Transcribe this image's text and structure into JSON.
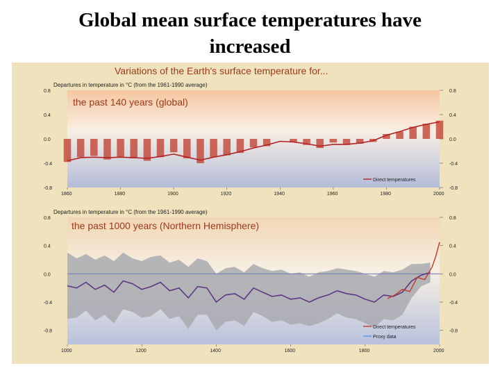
{
  "page": {
    "title": "Global mean surface temperatures have increased"
  },
  "figure": {
    "main_title": "Variations of the Earth's surface temperature for...",
    "background_color": "#f0e2bc",
    "title_color": "#9a3a1c"
  },
  "chart_data": [
    {
      "type": "bar",
      "subtitle": "Departures in temperature in °C (from the 1961-1990 average)",
      "panel_title": "the past 140 years (global)",
      "xlim": [
        1860,
        2000
      ],
      "ylim": [
        -0.8,
        0.8
      ],
      "x_ticks": [
        "1860",
        "1880",
        "1900",
        "1920",
        "1940",
        "1960",
        "1980",
        "2000"
      ],
      "y_ticks": [
        "0.8",
        "0.4",
        "0.0",
        "-0.4",
        "-0.8"
      ],
      "legend": [
        "Direct temperatures"
      ],
      "legend_placement": "bottom-right",
      "colors": {
        "bars": "#c0392b",
        "smooth": "#b22222",
        "warm": "#f6c7a0",
        "cool": "#b4bcd8"
      },
      "x": [
        1860,
        1865,
        1870,
        1875,
        1880,
        1885,
        1890,
        1895,
        1900,
        1905,
        1910,
        1915,
        1920,
        1925,
        1930,
        1935,
        1940,
        1945,
        1950,
        1955,
        1960,
        1965,
        1970,
        1975,
        1980,
        1985,
        1990,
        1995,
        2000
      ],
      "values": [
        -0.38,
        -0.3,
        -0.28,
        -0.34,
        -0.3,
        -0.32,
        -0.36,
        -0.3,
        -0.22,
        -0.32,
        -0.4,
        -0.3,
        -0.27,
        -0.23,
        -0.14,
        -0.12,
        0.0,
        -0.05,
        -0.1,
        -0.15,
        -0.06,
        -0.1,
        -0.08,
        -0.05,
        0.08,
        0.12,
        0.2,
        0.25,
        0.3
      ],
      "smooth": [
        -0.36,
        -0.31,
        -0.3,
        -0.31,
        -0.3,
        -0.31,
        -0.32,
        -0.29,
        -0.25,
        -0.3,
        -0.35,
        -0.3,
        -0.26,
        -0.21,
        -0.15,
        -0.1,
        -0.04,
        -0.05,
        -0.08,
        -0.12,
        -0.09,
        -0.09,
        -0.07,
        -0.03,
        0.06,
        0.12,
        0.19,
        0.24,
        0.28
      ]
    },
    {
      "type": "line",
      "subtitle": "Departures in temperature in °C (from the 1961-1990 average)",
      "panel_title": "the past 1000 years (Northern Hemisphere)",
      "xlim": [
        1000,
        2000
      ],
      "ylim": [
        -1.0,
        0.8
      ],
      "x_ticks": [
        "1000",
        "1200",
        "1400",
        "1600",
        "1800",
        "2000"
      ],
      "y_ticks": [
        "0.8",
        "0.4",
        "0.0",
        "-0.4",
        "-0.8"
      ],
      "legend": [
        "Direct temperatures",
        "Proxy data"
      ],
      "legend_placement": "bottom-right",
      "colors": {
        "smooth": "#5a1f6e",
        "proxy": "#4a90d9",
        "direct": "#c0392b",
        "uncertainty": "#a9aab0",
        "zero": "#6a7ab0"
      },
      "series": [
        {
          "name": "Proxy data",
          "x": [
            1000,
            1025,
            1050,
            1075,
            1100,
            1125,
            1150,
            1175,
            1200,
            1225,
            1250,
            1275,
            1300,
            1325,
            1350,
            1375,
            1400,
            1425,
            1450,
            1475,
            1500,
            1525,
            1550,
            1575,
            1600,
            1625,
            1650,
            1675,
            1700,
            1725,
            1750,
            1775,
            1800,
            1825,
            1850,
            1875,
            1900,
            1925,
            1950,
            1975
          ],
          "values": [
            -0.17,
            -0.2,
            -0.12,
            -0.22,
            -0.16,
            -0.26,
            -0.1,
            -0.14,
            -0.22,
            -0.18,
            -0.12,
            -0.24,
            -0.2,
            -0.34,
            -0.18,
            -0.2,
            -0.4,
            -0.3,
            -0.28,
            -0.36,
            -0.2,
            -0.26,
            -0.32,
            -0.3,
            -0.36,
            -0.34,
            -0.4,
            -0.34,
            -0.3,
            -0.24,
            -0.28,
            -0.3,
            -0.36,
            -0.4,
            -0.3,
            -0.32,
            -0.26,
            -0.1,
            -0.02,
            0.02
          ]
        },
        {
          "name": "Direct temperatures",
          "x": [
            1860,
            1880,
            1900,
            1920,
            1940,
            1960,
            1980,
            1990,
            2000
          ],
          "values": [
            -0.35,
            -0.3,
            -0.22,
            -0.25,
            -0.05,
            -0.08,
            0.1,
            0.25,
            0.45
          ]
        }
      ],
      "uncertainty_upper": [
        0.3,
        0.22,
        0.28,
        0.2,
        0.26,
        0.18,
        0.3,
        0.22,
        0.18,
        0.24,
        0.26,
        0.16,
        0.2,
        0.1,
        0.22,
        0.18,
        0.0,
        0.08,
        0.1,
        0.02,
        0.14,
        0.08,
        0.04,
        0.06,
        0.0,
        0.02,
        -0.04,
        0.02,
        0.04,
        0.08,
        0.06,
        0.04,
        0.0,
        -0.04,
        0.04,
        0.02,
        0.06,
        0.14,
        0.14,
        0.16
      ],
      "uncertainty_lower": [
        -0.64,
        -0.62,
        -0.52,
        -0.66,
        -0.58,
        -0.7,
        -0.5,
        -0.54,
        -0.62,
        -0.6,
        -0.5,
        -0.64,
        -0.6,
        -0.78,
        -0.58,
        -0.58,
        -0.8,
        -0.68,
        -0.66,
        -0.74,
        -0.54,
        -0.6,
        -0.68,
        -0.66,
        -0.72,
        -0.7,
        -0.74,
        -0.7,
        -0.64,
        -0.56,
        -0.62,
        -0.64,
        -0.7,
        -0.76,
        -0.64,
        -0.66,
        -0.58,
        -0.34,
        -0.18,
        -0.12
      ]
    }
  ]
}
